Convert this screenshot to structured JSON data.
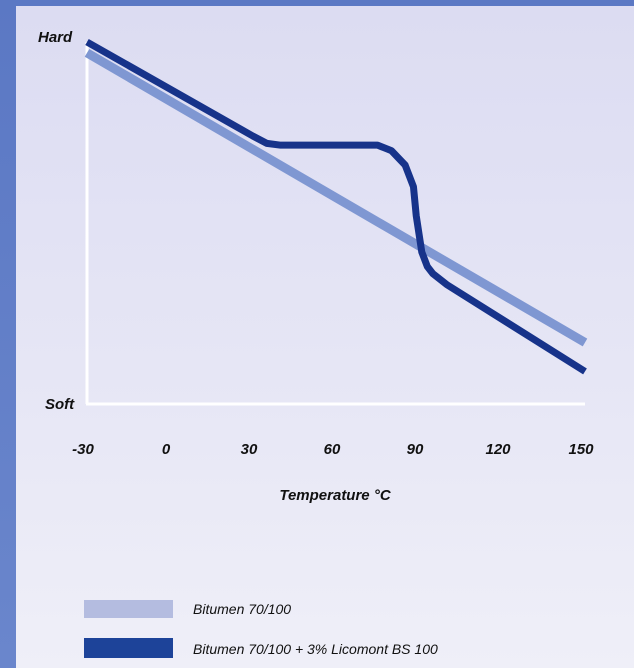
{
  "chart_data": {
    "type": "line",
    "x_ticks": [
      "-30",
      "0",
      "30",
      "60",
      "90",
      "120",
      "150"
    ],
    "xlabel": "Temperature °C",
    "y_top_label": "Hard",
    "y_bottom_label": "Soft",
    "xlim": [
      -30,
      150
    ],
    "ylim": [
      0,
      100
    ],
    "grid": false,
    "legend_position": "bottom-left",
    "series": [
      {
        "name": "Bitumen 70/100",
        "color": "#7f97d2",
        "x": [
          -30,
          150
        ],
        "y": [
          97,
          17
        ]
      },
      {
        "name": "Bitumen 70/100 + 3% Licomont BS 100",
        "color": "#17338a",
        "x": [
          -30,
          30,
          35,
          40,
          60,
          75,
          80,
          85,
          88,
          89,
          91,
          93,
          95,
          100,
          150
        ],
        "y": [
          100,
          74,
          72,
          71.5,
          71.5,
          71.5,
          70,
          66,
          60,
          52,
          42,
          38,
          36,
          33,
          9
        ]
      }
    ]
  }
}
